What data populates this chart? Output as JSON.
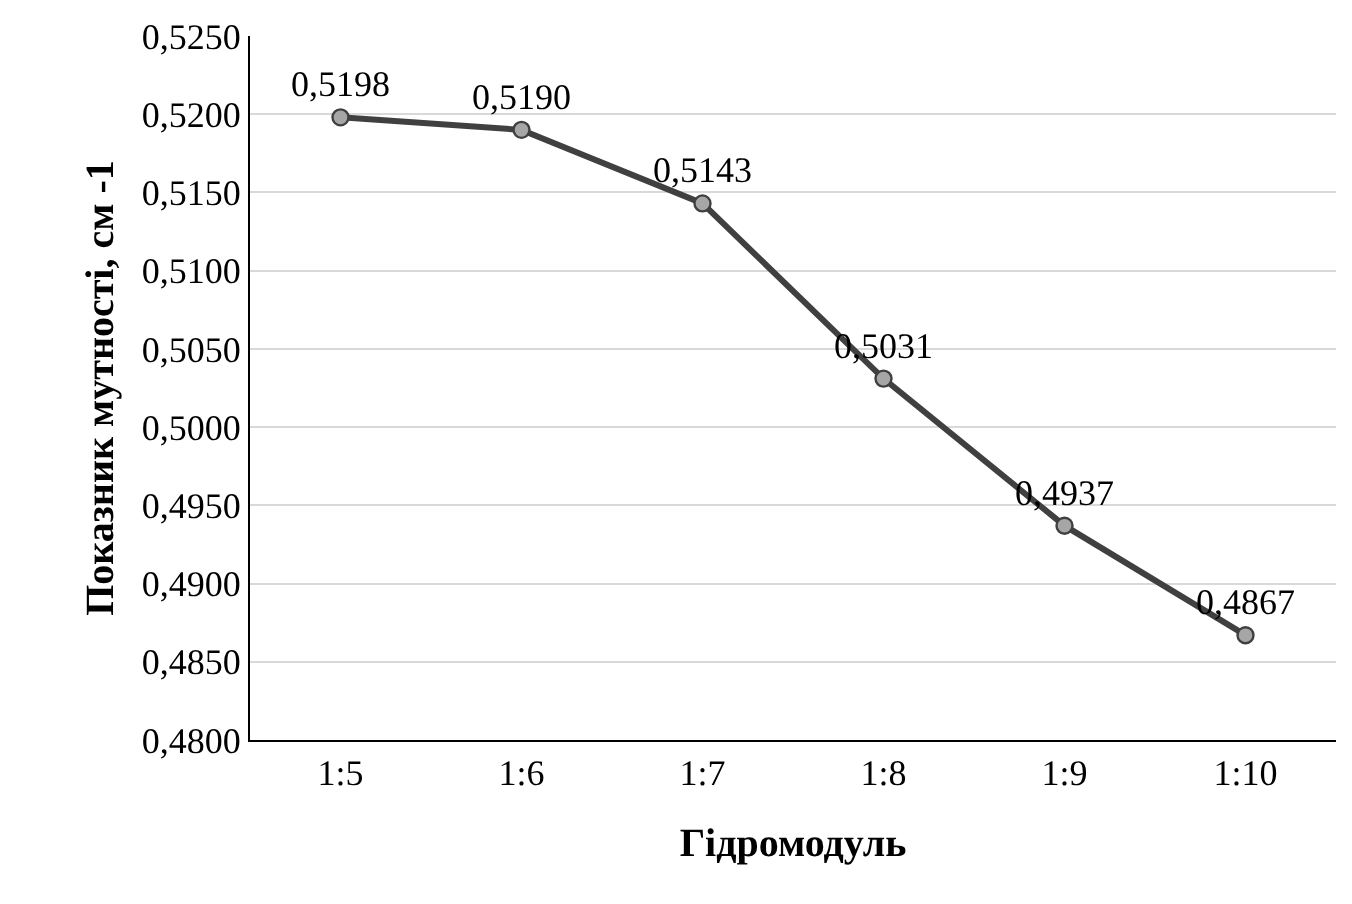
{
  "chart_data": {
    "type": "line",
    "xlabel": "Гідромодуль",
    "ylabel": "Показник мутності, см -1",
    "categories": [
      "1:5",
      "1:6",
      "1:7",
      "1:8",
      "1:9",
      "1:10"
    ],
    "series": [
      {
        "color": "#404040",
        "values": [
          0.5198,
          0.519,
          0.5143,
          0.5031,
          0.4937,
          0.4867
        ],
        "value_labels": [
          "0,5198",
          "0,5190",
          "0,5143",
          "0,5031",
          "0,4937",
          "0,4867"
        ]
      }
    ],
    "ylim": [
      0.48,
      0.525
    ],
    "yticks": [
      {
        "value": 0.48,
        "label": "0,4800"
      },
      {
        "value": 0.485,
        "label": "0,4850"
      },
      {
        "value": 0.49,
        "label": "0,4900"
      },
      {
        "value": 0.495,
        "label": "0,4950"
      },
      {
        "value": 0.5,
        "label": "0,5000"
      },
      {
        "value": 0.505,
        "label": "0,5050"
      },
      {
        "value": 0.51,
        "label": "0,5100"
      },
      {
        "value": 0.515,
        "label": "0,5150"
      },
      {
        "value": 0.52,
        "label": "0,5200"
      },
      {
        "value": 0.525,
        "label": "0,5250"
      }
    ],
    "grid": "y",
    "marker": "circle",
    "line_style": "solid",
    "legend": false
  }
}
